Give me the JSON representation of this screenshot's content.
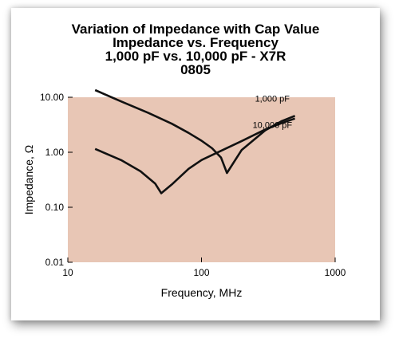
{
  "chart_data": {
    "type": "line",
    "title": [
      "Variation of Impedance with Cap Value",
      "Impedance vs. Frequency",
      "1,000 pF vs. 10,000 pF - X7R",
      "0805"
    ],
    "xlabel": "Frequency, MHz",
    "ylabel": "Impedance, Ω",
    "x_scale": "log",
    "y_scale": "log",
    "xlim": [
      10,
      1000
    ],
    "ylim": [
      0.01,
      10
    ],
    "x_ticks": [
      "10",
      "100",
      "1000"
    ],
    "y_ticks": [
      "10.00",
      "1.00",
      "0.10",
      "0.01"
    ],
    "grid": false,
    "background_color": "#e8c6b5",
    "series": [
      {
        "name": "1,000 pF",
        "x": [
          16,
          25,
          40,
          60,
          80,
          100,
          120,
          140,
          155,
          200,
          300,
          400,
          500
        ],
        "y": [
          13.5,
          8.4,
          5.2,
          3.3,
          2.25,
          1.62,
          1.18,
          0.8,
          0.42,
          1.1,
          2.5,
          3.7,
          4.6
        ]
      },
      {
        "name": "10,000 pF",
        "x": [
          16,
          25,
          35,
          45,
          50,
          60,
          80,
          100,
          150,
          200,
          300,
          400,
          500
        ],
        "y": [
          1.15,
          0.72,
          0.45,
          0.27,
          0.18,
          0.26,
          0.5,
          0.72,
          1.15,
          1.6,
          2.6,
          3.4,
          4.1
        ]
      }
    ]
  }
}
